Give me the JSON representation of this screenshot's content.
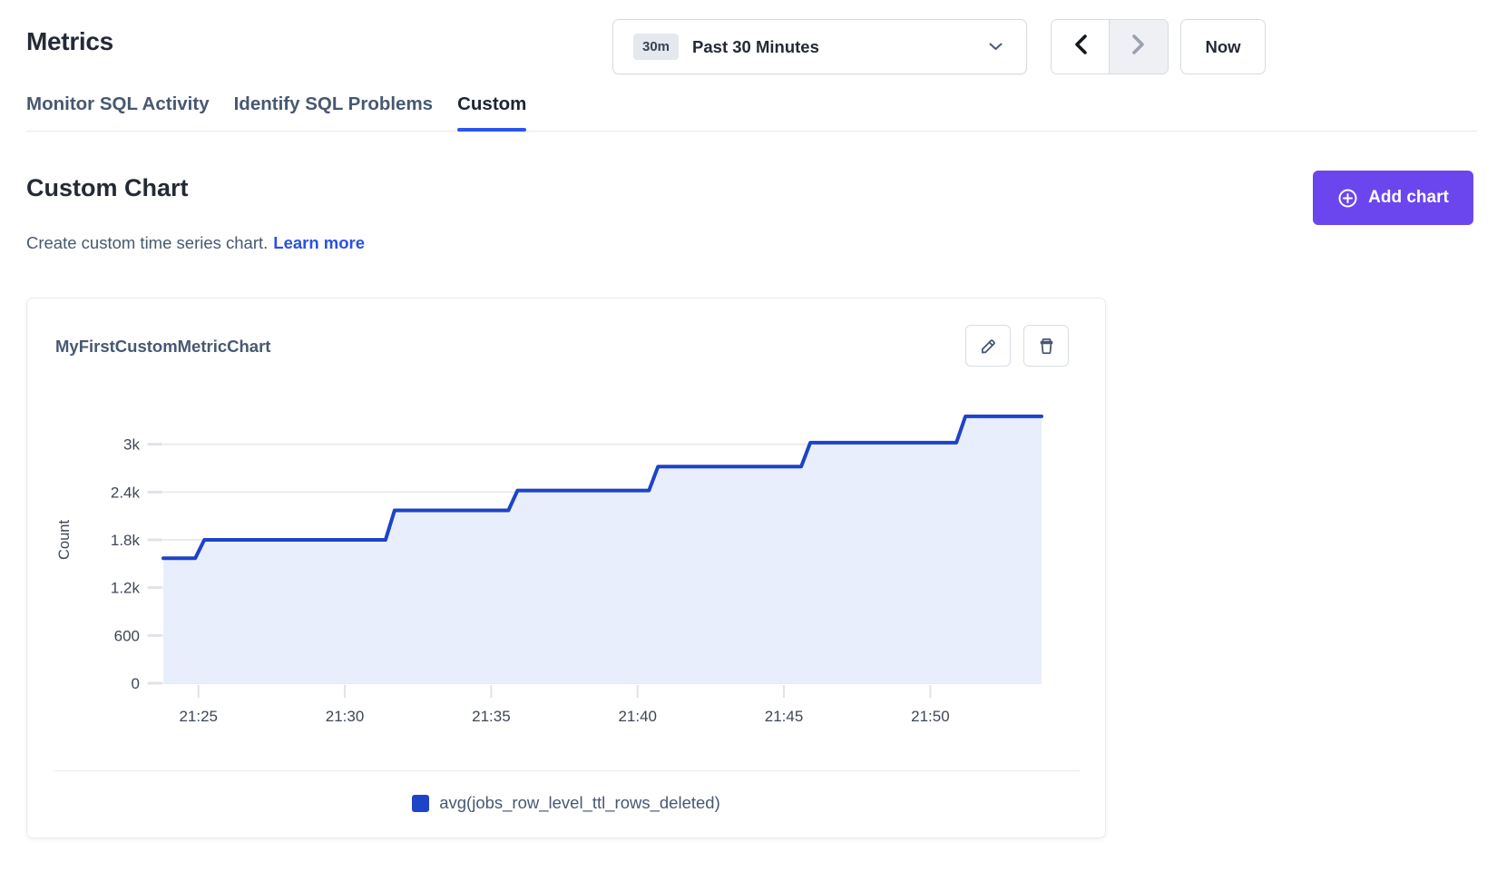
{
  "header": {
    "title": "Metrics",
    "time_selector": {
      "badge": "30m",
      "label": "Past 30 Minutes",
      "dropdown_icon": "chevron-down-icon"
    },
    "prev_icon": "chevron-left-icon",
    "next_icon": "chevron-right-icon",
    "next_disabled": true,
    "now_button": "Now"
  },
  "tabs": [
    {
      "label": "Monitor SQL Activity",
      "active": false
    },
    {
      "label": "Identify SQL Problems",
      "active": false
    },
    {
      "label": "Custom",
      "active": true
    }
  ],
  "section": {
    "title": "Custom Chart",
    "subtitle": "Create custom time series chart.",
    "learn_more": "Learn more",
    "add_chart_button": "Add chart",
    "add_chart_icon": "plus-circle-icon"
  },
  "card": {
    "title": "MyFirstCustomMetricChart",
    "edit_icon": "pencil-icon",
    "delete_icon": "trash-icon"
  },
  "colors": {
    "accent_purple": "#6b46ef",
    "link_blue": "#2952e1",
    "tab_underline": "#2b55f2",
    "series_blue": "#1d43c8",
    "series_fill": "#e9eefc",
    "gridline": "#e9ebf1",
    "axis_text": "#3e4755"
  },
  "chart_data": {
    "type": "area",
    "subtype": "step-line-time-series",
    "title": "MyFirstCustomMetricChart",
    "ylabel": "Count",
    "xlabel": "",
    "legend_position": "bottom-center",
    "grid": true,
    "ylim": [
      0,
      3600
    ],
    "x_unit": "minutes after 21:00",
    "x_range_minutes": [
      23.8,
      53.8
    ],
    "y_ticks": [
      {
        "label": "0",
        "value": 0
      },
      {
        "label": "600",
        "value": 600
      },
      {
        "label": "1.2k",
        "value": 1200
      },
      {
        "label": "1.8k",
        "value": 1800
      },
      {
        "label": "2.4k",
        "value": 2400
      },
      {
        "label": "3k",
        "value": 3000
      }
    ],
    "x_ticks": [
      {
        "label": "21:25",
        "minute": 25
      },
      {
        "label": "21:30",
        "minute": 30
      },
      {
        "label": "21:35",
        "minute": 35
      },
      {
        "label": "21:40",
        "minute": 40
      },
      {
        "label": "21:45",
        "minute": 45
      },
      {
        "label": "21:50",
        "minute": 50
      }
    ],
    "series": [
      {
        "name": "avg(jobs_row_level_ttl_rows_deleted)",
        "color": "#1d43c8",
        "fill_color": "#e9eefc",
        "start": {
          "minute": 23.8,
          "value": 1570
        },
        "steps": [
          {
            "time": "21:25",
            "minute": 25.2,
            "value": 1800
          },
          {
            "time": "21:32",
            "minute": 31.7,
            "value": 2170
          },
          {
            "time": "21:36",
            "minute": 35.9,
            "value": 2420
          },
          {
            "time": "21:41",
            "minute": 40.7,
            "value": 2720
          },
          {
            "time": "21:46",
            "minute": 45.9,
            "value": 3020
          },
          {
            "time": "21:51",
            "minute": 51.2,
            "value": 3350
          }
        ],
        "end_minute": 53.8
      }
    ]
  }
}
